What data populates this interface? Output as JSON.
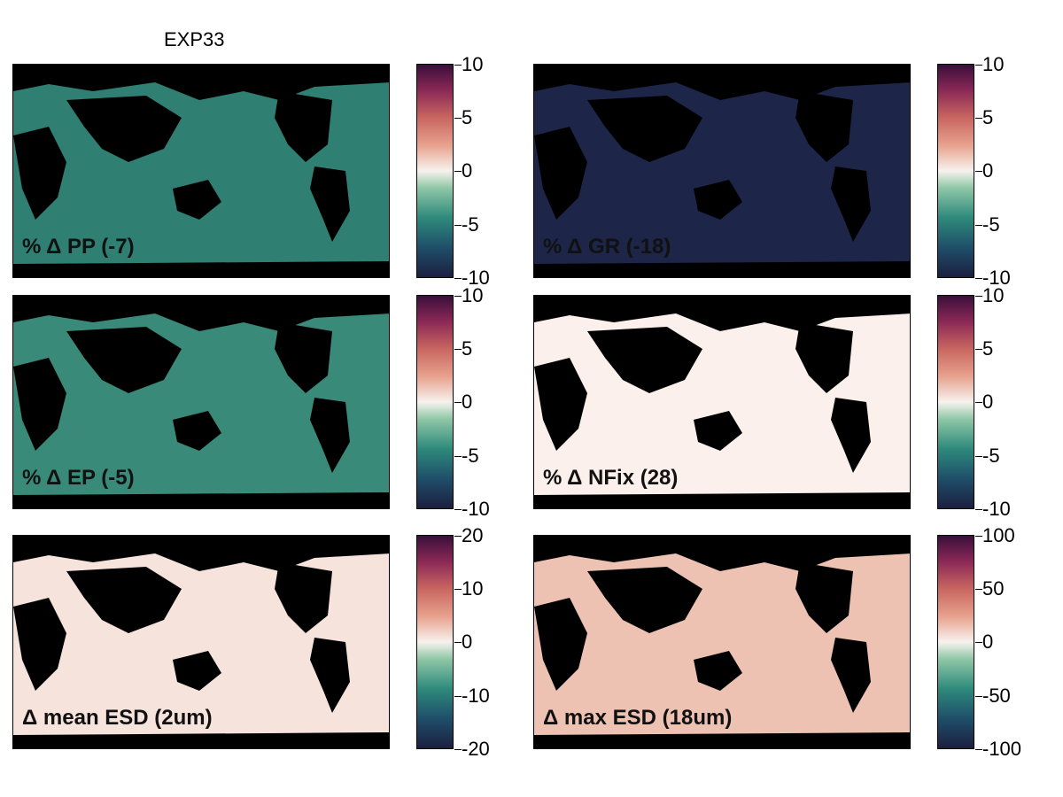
{
  "figure": {
    "title": "EXP33"
  },
  "panels": [
    {
      "label": "% Δ PP (-7)",
      "ocean": "#2f7f72",
      "cbar_ticks": [
        "10",
        "5",
        "0",
        "-5",
        "-10"
      ]
    },
    {
      "label": "% Δ GR (-18)",
      "ocean": "#1d2548",
      "cbar_ticks": [
        "10",
        "5",
        "0",
        "-5",
        "-10"
      ]
    },
    {
      "label": "% Δ EP (-5)",
      "ocean": "#3a8a7a",
      "cbar_ticks": [
        "10",
        "5",
        "0",
        "-5",
        "-10"
      ]
    },
    {
      "label": "% Δ NFix (28)",
      "ocean": "#fbf0ec",
      "cbar_ticks": [
        "10",
        "5",
        "0",
        "-5",
        "-10"
      ]
    },
    {
      "label": "Δ mean ESD (2um)",
      "ocean": "#f6e3dc",
      "cbar_ticks": [
        "20",
        "10",
        "0",
        "-10",
        "-20"
      ]
    },
    {
      "label": "Δ max ESD (18um)",
      "ocean": "#eec2b3",
      "cbar_ticks": [
        "100",
        "50",
        "0",
        "-50",
        "-100"
      ]
    }
  ]
}
